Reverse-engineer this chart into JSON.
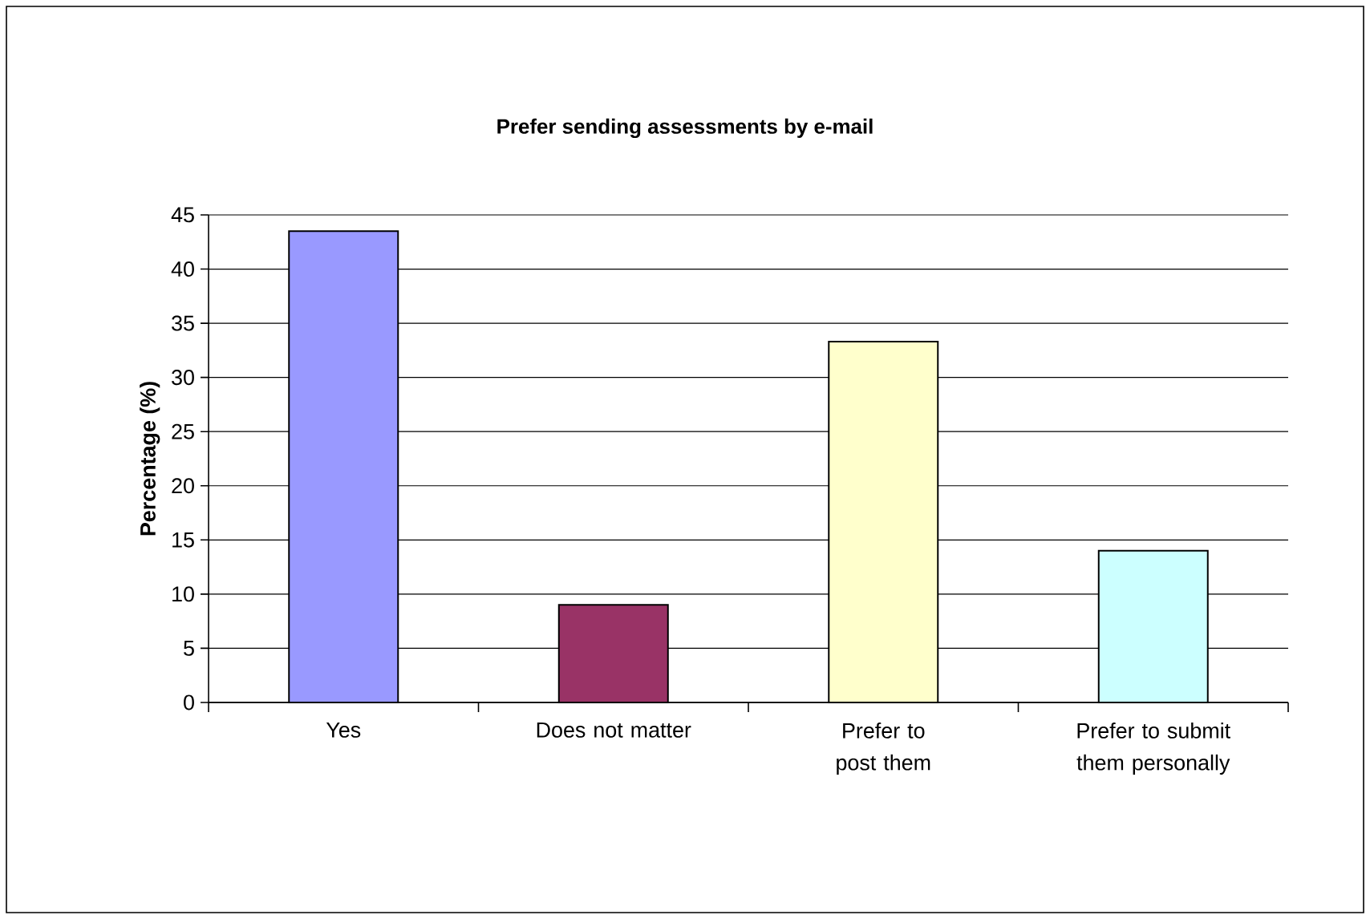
{
  "chart_data": {
    "type": "bar",
    "title": "Prefer sending assessments by e-mail",
    "ylabel": "Percentage (%)",
    "categories": [
      "Yes",
      "Does not matter",
      "Prefer to post them",
      "Prefer to submit them personally"
    ],
    "values": [
      43.5,
      9,
      33.3,
      14
    ],
    "colors": [
      "#9999ff",
      "#993366",
      "#ffffcc",
      "#ccffff"
    ],
    "ylim": [
      0,
      45
    ],
    "yticks": [
      0,
      5,
      10,
      15,
      20,
      25,
      30,
      35,
      40,
      45
    ],
    "grid": "y"
  }
}
